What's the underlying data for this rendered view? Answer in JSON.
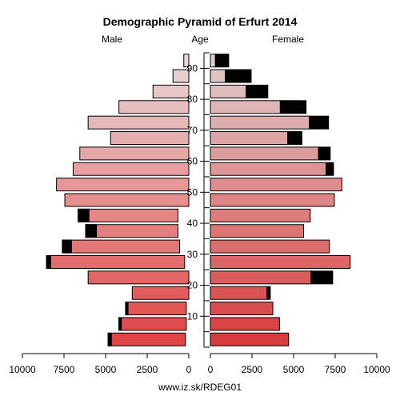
{
  "chart_data": {
    "type": "bar",
    "title": "Demographic Pyramid of Erfurt 2014",
    "left_label": "Male",
    "center_label": "Age",
    "right_label": "Female",
    "footer": "www.iz.sk/RDEG01",
    "age_ticks": [
      "10",
      "20",
      "30",
      "40",
      "50",
      "60",
      "70",
      "80",
      "90"
    ],
    "x_ticks_left": [
      "10000",
      "7500",
      "5000",
      "2500",
      "0"
    ],
    "x_ticks_right": [
      "0",
      "2500",
      "5000",
      "7500",
      "10000"
    ],
    "xlim": [
      0,
      10000
    ],
    "age_groups": [
      "0-4",
      "5-9",
      "10-14",
      "15-19",
      "20-24",
      "25-29",
      "30-34",
      "35-39",
      "40-44",
      "45-49",
      "50-54",
      "55-59",
      "60-64",
      "65-69",
      "70-74",
      "75-79",
      "80-84",
      "85-89",
      "90+"
    ],
    "series": [
      {
        "name": "Male",
        "values": [
          4850,
          4200,
          3800,
          3400,
          6050,
          8550,
          7600,
          6200,
          6650,
          7450,
          7950,
          6950,
          6550,
          4700,
          6050,
          4200,
          2150,
          950,
          300
        ],
        "surplus": [
          200,
          150,
          150,
          0,
          0,
          250,
          550,
          650,
          650,
          0,
          0,
          0,
          0,
          0,
          0,
          0,
          0,
          0,
          0
        ]
      },
      {
        "name": "Female",
        "values": [
          4700,
          4150,
          3750,
          3600,
          7350,
          8400,
          7150,
          5600,
          6000,
          7450,
          7900,
          7400,
          7200,
          5500,
          7100,
          5750,
          3450,
          2450,
          1100
        ],
        "surplus": [
          0,
          0,
          0,
          200,
          1300,
          0,
          0,
          0,
          0,
          0,
          0,
          450,
          700,
          850,
          1150,
          1550,
          1300,
          1550,
          800
        ]
      }
    ]
  }
}
